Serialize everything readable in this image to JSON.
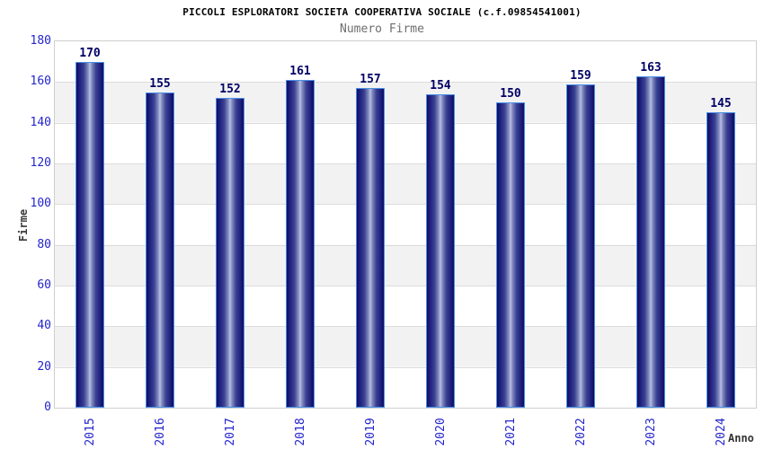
{
  "header": {
    "title": "PICCOLI ESPLORATORI SOCIETA COOPERATIVA SOCIALE (c.f.09854541001)",
    "subtitle": "Numero Firme"
  },
  "chart_data": {
    "type": "bar",
    "title": "PICCOLI ESPLORATORI SOCIETA COOPERATIVA SOCIALE (c.f.09854541001)",
    "subtitle": "Numero Firme",
    "categories": [
      "2015",
      "2016",
      "2017",
      "2018",
      "2019",
      "2020",
      "2021",
      "2022",
      "2023",
      "2024"
    ],
    "values": [
      170,
      155,
      152,
      161,
      157,
      154,
      150,
      159,
      163,
      145
    ],
    "xlabel": "Anno",
    "ylabel": "Firme",
    "ylim": [
      0,
      180
    ],
    "ytick_step": 20,
    "grid": true,
    "legend": false,
    "bands": true,
    "colors": {
      "bar_edge_dark": "#0f0f5e",
      "bar_center_light": "#b9c0e2",
      "bar_border": "#4a90e8",
      "tick_label": "#2424cc",
      "value_label": "#000066",
      "axis_title": "#3a3a3a",
      "band_gray": "#f2f2f2",
      "grid_line": "#dcdcdc",
      "plot_border": "#cfcfcf",
      "title": "#000000",
      "subtitle": "#6e6e6e"
    }
  }
}
